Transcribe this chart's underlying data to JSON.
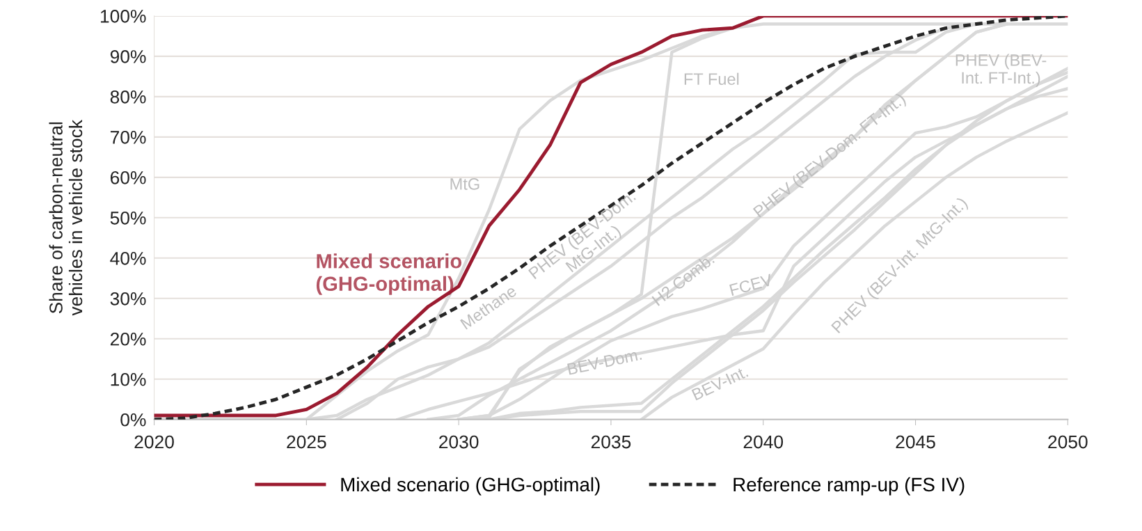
{
  "chart_data": {
    "type": "line",
    "ylabel": "Share of carbon-neutral\nvehicles in vehicle stock",
    "x": [
      2020,
      2021,
      2022,
      2023,
      2024,
      2025,
      2026,
      2027,
      2028,
      2029,
      2030,
      2031,
      2032,
      2033,
      2034,
      2035,
      2036,
      2037,
      2038,
      2039,
      2040,
      2041,
      2042,
      2043,
      2044,
      2045,
      2046,
      2047,
      2048,
      2049,
      2050
    ],
    "xlim": [
      2020,
      2050
    ],
    "xticks": [
      2020,
      2025,
      2030,
      2035,
      2040,
      2045,
      2050
    ],
    "ylim": [
      0,
      100
    ],
    "yticks": [
      {
        "value": 0,
        "label": "0%"
      },
      {
        "value": 10,
        "label": "10%"
      },
      {
        "value": 20,
        "label": "20%"
      },
      {
        "value": 30,
        "label": "30%"
      },
      {
        "value": 40,
        "label": "40%"
      },
      {
        "value": 50,
        "label": "50%"
      },
      {
        "value": 60,
        "label": "60%"
      },
      {
        "value": 70,
        "label": "70%"
      },
      {
        "value": 80,
        "label": "80%"
      },
      {
        "value": 90,
        "label": "90%"
      },
      {
        "value": 100,
        "label": "100%"
      }
    ],
    "grid": "y",
    "legend": "bottom",
    "series": [
      {
        "name": "MtG",
        "color": "#d9d9d9",
        "values": [
          0,
          0,
          0,
          0,
          0,
          0,
          6,
          12,
          17,
          21,
          35,
          52,
          72,
          79,
          84,
          86.5,
          89,
          92,
          95,
          97,
          98,
          98,
          98,
          98,
          98,
          98,
          98,
          98,
          98,
          98,
          98
        ]
      },
      {
        "name": "FT Fuel",
        "color": "#d9d9d9",
        "x": [
          2030,
          2031,
          2032,
          2033,
          2034,
          2035,
          2036,
          2037,
          2038,
          2039,
          2040,
          2041,
          2042,
          2043,
          2044,
          2045,
          2046,
          2047,
          2048,
          2049,
          2050
        ],
        "values": [
          0,
          1,
          12,
          18,
          22,
          26,
          31,
          91,
          94.5,
          97,
          100,
          100,
          100,
          100,
          100,
          100,
          100,
          100,
          100,
          100,
          100
        ]
      },
      {
        "name": "PHEV (BEV-Dom.\nMtG-Int.)",
        "color": "#d9d9d9",
        "x": [
          2026,
          2027,
          2028,
          2029,
          2030,
          2031,
          2032,
          2033,
          2034,
          2035,
          2036,
          2037,
          2038,
          2039,
          2040,
          2041,
          2042,
          2043,
          2044,
          2045,
          2046,
          2047
        ],
        "values": [
          0,
          4,
          10,
          13,
          15,
          19,
          25,
          31,
          37,
          43,
          49,
          55,
          61,
          67,
          72,
          78,
          84,
          90.5,
          91,
          91,
          96,
          98
        ]
      },
      {
        "name": "Methane",
        "color": "#d9d9d9",
        "x": [
          2025,
          2026,
          2027,
          2028,
          2029,
          2030,
          2031,
          2032,
          2033,
          2034,
          2035,
          2036,
          2037,
          2038,
          2039,
          2040,
          2041,
          2042,
          2043,
          2044,
          2045,
          2046,
          2047
        ],
        "values": [
          0,
          1,
          5,
          8,
          11,
          15,
          18,
          23,
          28,
          33,
          38,
          44,
          50,
          55,
          61,
          67,
          73,
          79,
          85,
          90,
          94,
          97,
          98
        ]
      },
      {
        "name": "H2 Comb.",
        "color": "#d9d9d9",
        "x": [
          2029,
          2030,
          2031,
          2032,
          2033,
          2034,
          2035,
          2036,
          2037,
          2038,
          2039,
          2040,
          2041,
          2042,
          2043,
          2044,
          2045,
          2046,
          2047,
          2048
        ],
        "values": [
          0,
          1,
          6,
          10,
          14,
          18,
          22,
          27,
          32,
          38,
          44,
          51,
          57,
          63,
          70,
          77,
          84,
          90,
          96,
          98
        ]
      },
      {
        "name": "PHEV (BEV-Dom. FT-Int.)",
        "color": "#d9d9d9",
        "x": [
          2030,
          2031,
          2032,
          2033,
          2034,
          2035,
          2036,
          2037,
          2038,
          2039,
          2040,
          2041,
          2042,
          2043,
          2044,
          2045,
          2046,
          2047,
          2048
        ],
        "values": [
          0,
          0.5,
          12.5,
          17.5,
          22,
          26,
          30,
          35,
          40,
          45,
          51,
          58,
          64,
          70,
          78,
          84,
          90,
          96,
          98
        ]
      },
      {
        "name": "FCEV",
        "color": "#d9d9d9",
        "x": [
          2030,
          2031,
          2032,
          2033,
          2034,
          2035,
          2036,
          2037,
          2038,
          2039,
          2040,
          2041,
          2042,
          2043,
          2044,
          2045,
          2046,
          2047,
          2048,
          2049,
          2050
        ],
        "values": [
          0,
          1,
          5,
          10,
          15,
          19.5,
          22.5,
          25.5,
          27.5,
          30,
          32.5,
          43,
          50,
          57,
          64,
          71,
          72.5,
          75,
          79,
          83,
          87
        ]
      },
      {
        "name": "BEV-Dom.",
        "color": "#d9d9d9",
        "x": [
          2028,
          2029,
          2030,
          2031,
          2032,
          2033,
          2034,
          2035,
          2036,
          2037,
          2038,
          2039,
          2040,
          2041,
          2042,
          2043,
          2044,
          2045,
          2046,
          2047,
          2048,
          2049,
          2050
        ],
        "values": [
          0,
          2.5,
          4.5,
          6.5,
          9,
          11.5,
          13.5,
          15,
          16.5,
          18,
          19.5,
          21,
          22,
          38,
          45,
          52,
          59,
          65,
          69,
          73,
          77,
          80,
          82
        ]
      },
      {
        "name": "BEV-Int.",
        "color": "#d9d9d9",
        "x": [
          2036,
          2037,
          2038,
          2039,
          2040,
          2041,
          2042,
          2043,
          2044,
          2045,
          2046,
          2047,
          2048,
          2049,
          2050
        ],
        "values": [
          0,
          5.5,
          9.5,
          13.5,
          17.5,
          26,
          34,
          41,
          48,
          54,
          60,
          65,
          69,
          72.5,
          76
        ]
      },
      {
        "name": "PHEV (BEV-Int. MtG-Int.)",
        "color": "#d9d9d9",
        "x": [
          2031,
          2032,
          2033,
          2034,
          2035,
          2036,
          2037,
          2038,
          2039,
          2040,
          2041,
          2042,
          2043,
          2044,
          2045,
          2046,
          2047,
          2048,
          2049,
          2050
        ],
        "values": [
          0,
          1,
          1.5,
          2,
          2,
          2,
          9,
          15,
          21,
          27,
          34,
          40.5,
          47,
          54,
          61,
          68,
          73,
          77,
          81,
          85
        ]
      },
      {
        "name": "PHEV (BEV-\nInt. FT-Int.)",
        "color": "#d9d9d9",
        "x": [
          2031,
          2032,
          2033,
          2034,
          2035,
          2036,
          2037,
          2038,
          2039,
          2040,
          2041,
          2042,
          2043,
          2044,
          2045,
          2046,
          2047,
          2048,
          2049,
          2050
        ],
        "values": [
          0,
          1.5,
          2,
          3,
          3.5,
          4,
          10,
          16,
          22,
          28,
          35,
          42,
          48.5,
          55,
          62,
          68,
          74,
          79,
          83,
          86
        ]
      },
      {
        "name": "Mixed scenario (GHG-optimal)",
        "color": "#9b1b30",
        "line_style": "solid",
        "values": [
          1,
          1,
          1,
          1,
          1,
          2.5,
          6.5,
          13,
          21,
          28,
          33,
          48,
          57,
          68,
          83.5,
          88,
          91,
          95,
          96.5,
          97,
          100,
          100,
          100,
          100,
          100,
          100,
          100,
          100,
          100,
          100,
          100
        ]
      },
      {
        "name": "Reference ramp-up (FS IV)",
        "color": "#262626",
        "line_style": "dashed",
        "values": [
          0,
          0.3,
          1.5,
          3,
          5,
          8,
          11,
          15,
          19.5,
          24,
          28,
          32.5,
          37.5,
          43,
          48,
          53,
          58,
          63.5,
          68.5,
          73.5,
          78.5,
          83,
          87,
          90,
          92.5,
          95,
          97,
          98,
          99,
          99.5,
          100
        ]
      }
    ],
    "annotations": [
      "Mixed scenario\n(GHG-optimal)"
    ]
  }
}
